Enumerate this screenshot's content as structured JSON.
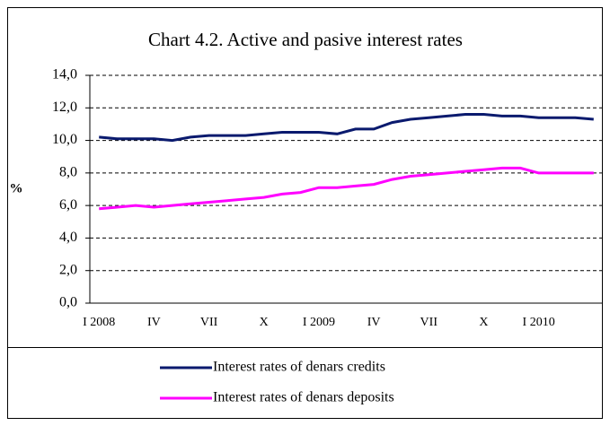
{
  "chart_data": {
    "type": "line",
    "title": "Chart 4.2. Active and pasive interest rates",
    "y_label": "%",
    "categories": [
      "I 2008",
      null,
      null,
      "IV",
      null,
      null,
      "VII",
      null,
      null,
      "X",
      null,
      null,
      "I 2009",
      null,
      null,
      "IV",
      null,
      null,
      "VII",
      null,
      null,
      "X",
      null,
      null,
      "I 2010",
      null,
      null,
      null
    ],
    "series": [
      {
        "name": "Interest rates of denars credits",
        "color": "#0a1a6e",
        "values": [
          10.2,
          10.1,
          10.1,
          10.1,
          10.0,
          10.2,
          10.3,
          10.3,
          10.3,
          10.4,
          10.5,
          10.5,
          10.5,
          10.4,
          10.7,
          10.7,
          11.1,
          11.3,
          11.4,
          11.5,
          11.6,
          11.6,
          11.5,
          11.5,
          11.4,
          11.4,
          11.4,
          11.3
        ]
      },
      {
        "name": "Interest rates of denars deposits",
        "color": "#ff00ff",
        "values": [
          5.8,
          5.9,
          6.0,
          5.9,
          6.0,
          6.1,
          6.2,
          6.3,
          6.4,
          6.5,
          6.7,
          6.8,
          7.1,
          7.1,
          7.2,
          7.3,
          7.6,
          7.8,
          7.9,
          8.0,
          8.1,
          8.2,
          8.3,
          8.3,
          8.0,
          8.0,
          8.0,
          8.0
        ]
      }
    ],
    "ylim": [
      0,
      14
    ],
    "yticks": [
      {
        "value": 0,
        "label": "0,0"
      },
      {
        "value": 2,
        "label": "2,0"
      },
      {
        "value": 4,
        "label": "4,0"
      },
      {
        "value": 6,
        "label": "6,0"
      },
      {
        "value": 8,
        "label": "8,0"
      },
      {
        "value": 10,
        "label": "10,0"
      },
      {
        "value": 12,
        "label": "12,0"
      },
      {
        "value": 14,
        "label": "14,0"
      }
    ],
    "grid": true,
    "legend": "bottom"
  }
}
